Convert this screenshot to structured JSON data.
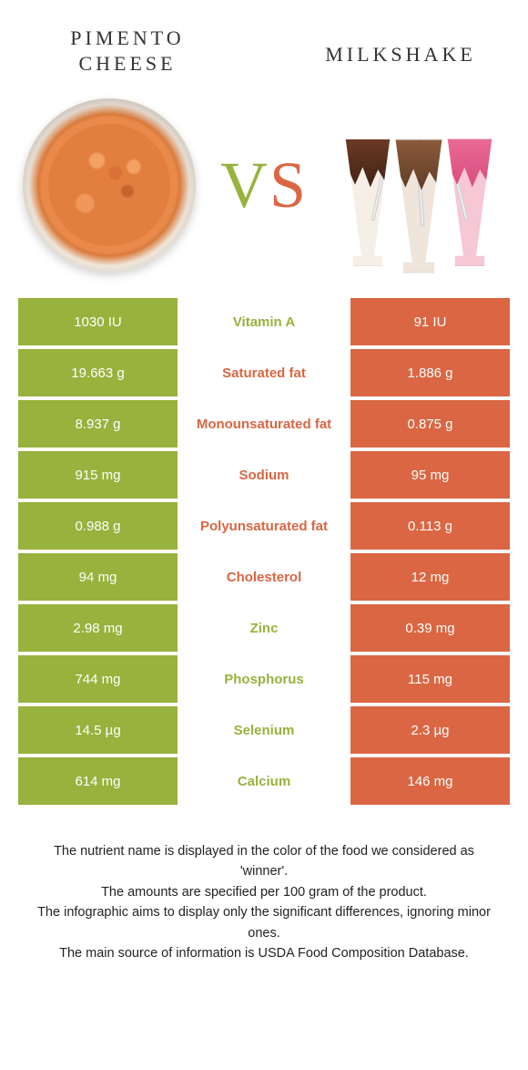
{
  "colors": {
    "left_food": "#97b23d",
    "right_food": "#da6643",
    "background": "#ffffff",
    "text": "#222222"
  },
  "foods": {
    "left": {
      "name": "Pimento Cheese"
    },
    "right": {
      "name": "Milkshake"
    }
  },
  "vs_label": "VS",
  "rows": [
    {
      "nutrient": "Vitamin A",
      "winner": "left",
      "left": "1030 IU",
      "right": "91 IU"
    },
    {
      "nutrient": "Saturated fat",
      "winner": "right",
      "left": "19.663 g",
      "right": "1.886 g"
    },
    {
      "nutrient": "Monounsaturated fat",
      "winner": "right",
      "left": "8.937 g",
      "right": "0.875 g"
    },
    {
      "nutrient": "Sodium",
      "winner": "right",
      "left": "915 mg",
      "right": "95 mg"
    },
    {
      "nutrient": "Polyunsaturated fat",
      "winner": "right",
      "left": "0.988 g",
      "right": "0.113 g"
    },
    {
      "nutrient": "Cholesterol",
      "winner": "right",
      "left": "94 mg",
      "right": "12 mg"
    },
    {
      "nutrient": "Zinc",
      "winner": "left",
      "left": "2.98 mg",
      "right": "0.39 mg"
    },
    {
      "nutrient": "Phosphorus",
      "winner": "left",
      "left": "744 mg",
      "right": "115 mg"
    },
    {
      "nutrient": "Selenium",
      "winner": "left",
      "left": "14.5 µg",
      "right": "2.3 µg"
    },
    {
      "nutrient": "Calcium",
      "winner": "left",
      "left": "614 mg",
      "right": "146 mg"
    }
  ],
  "footer": {
    "line1": "The nutrient name is displayed in the color of the food we considered as 'winner'.",
    "line2": "The amounts are specified per 100 gram of the product.",
    "line3": "The infographic aims to display only the significant differences, ignoring minor ones.",
    "line4": "The main source of information is USDA Food Composition Database."
  }
}
